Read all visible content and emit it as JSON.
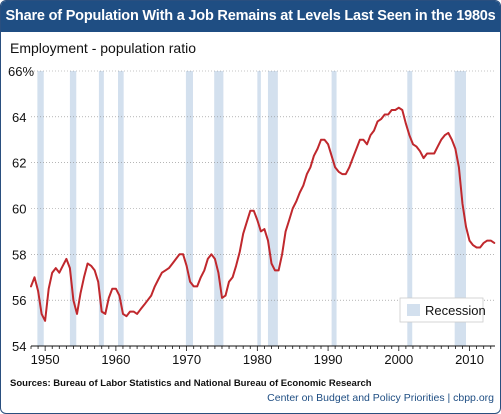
{
  "title": "Share of Population With a Job Remains at Levels Last Seen in the 1980s",
  "source": "Sources: Bureau of Labor Statistics and National Bureau of Economic Research",
  "credit": "Center on Budget and Policy Priorities | cbpp.org",
  "colors": {
    "title_bg": "#1f4e83",
    "line": "#c0282d",
    "recession": "#d3e0ee",
    "credit": "#1f4e83"
  },
  "chart_data": {
    "type": "line",
    "title": "Share of Population With a Job Remains at Levels Last Seen in the 1980s",
    "ylabel": "Employment - population ratio",
    "xlabel": "",
    "xlim": [
      1948,
      2013.6
    ],
    "ylim": [
      54,
      66
    ],
    "y_ticks": [
      54,
      56,
      58,
      60,
      62,
      64,
      66
    ],
    "y_tick_labels": [
      "54",
      "56",
      "58",
      "60",
      "62",
      "64",
      "66%"
    ],
    "x_ticks": [
      1950,
      1960,
      1970,
      1980,
      1990,
      2000,
      2010
    ],
    "x_tick_labels": [
      "1950",
      "1960",
      "1970",
      "1980",
      "1990",
      "2000",
      "2010"
    ],
    "grid": true,
    "legend": {
      "label": "Recession",
      "placement": "bottom-right"
    },
    "recessions": [
      [
        1948.9,
        1949.8
      ],
      [
        1953.5,
        1954.4
      ],
      [
        1957.6,
        1958.3
      ],
      [
        1960.3,
        1961.1
      ],
      [
        1969.9,
        1970.9
      ],
      [
        1973.9,
        1975.2
      ],
      [
        1980.0,
        1980.5
      ],
      [
        1981.5,
        1982.9
      ],
      [
        1990.5,
        1991.2
      ],
      [
        2001.2,
        2001.9
      ],
      [
        2007.9,
        2009.5
      ]
    ],
    "series": [
      {
        "name": "Employment - population ratio",
        "x": [
          1948.0,
          1948.5,
          1949.0,
          1949.5,
          1950.0,
          1950.5,
          1951.0,
          1951.5,
          1952.0,
          1952.5,
          1953.0,
          1953.5,
          1954.0,
          1954.5,
          1955.0,
          1955.5,
          1956.0,
          1956.5,
          1957.0,
          1957.5,
          1958.0,
          1958.5,
          1959.0,
          1959.5,
          1960.0,
          1960.5,
          1961.0,
          1961.5,
          1962.0,
          1962.5,
          1963.0,
          1963.5,
          1964.0,
          1964.5,
          1965.0,
          1965.5,
          1966.0,
          1966.5,
          1967.0,
          1967.5,
          1968.0,
          1968.5,
          1969.0,
          1969.5,
          1970.0,
          1970.5,
          1971.0,
          1971.5,
          1972.0,
          1972.5,
          1973.0,
          1973.5,
          1974.0,
          1974.5,
          1975.0,
          1975.5,
          1976.0,
          1976.5,
          1977.0,
          1977.5,
          1978.0,
          1978.5,
          1979.0,
          1979.5,
          1980.0,
          1980.5,
          1981.0,
          1981.5,
          1982.0,
          1982.5,
          1983.0,
          1983.5,
          1984.0,
          1984.5,
          1985.0,
          1985.5,
          1986.0,
          1986.5,
          1987.0,
          1987.5,
          1988.0,
          1988.5,
          1989.0,
          1989.5,
          1990.0,
          1990.5,
          1991.0,
          1991.5,
          1992.0,
          1992.5,
          1993.0,
          1993.5,
          1994.0,
          1994.5,
          1995.0,
          1995.5,
          1996.0,
          1996.5,
          1997.0,
          1997.5,
          1998.0,
          1998.5,
          1999.0,
          1999.5,
          2000.0,
          2000.5,
          2001.0,
          2001.5,
          2002.0,
          2002.5,
          2003.0,
          2003.5,
          2004.0,
          2004.5,
          2005.0,
          2005.5,
          2006.0,
          2006.5,
          2007.0,
          2007.5,
          2008.0,
          2008.5,
          2009.0,
          2009.5,
          2010.0,
          2010.5,
          2011.0,
          2011.5,
          2012.0,
          2012.5,
          2013.0,
          2013.5
        ],
        "values": [
          56.6,
          57.0,
          56.4,
          55.4,
          55.1,
          56.5,
          57.2,
          57.4,
          57.2,
          57.5,
          57.8,
          57.4,
          56.0,
          55.4,
          56.3,
          57.0,
          57.6,
          57.5,
          57.3,
          56.8,
          55.5,
          55.4,
          56.1,
          56.5,
          56.5,
          56.2,
          55.4,
          55.3,
          55.5,
          55.5,
          55.4,
          55.6,
          55.8,
          56.0,
          56.2,
          56.6,
          56.9,
          57.2,
          57.3,
          57.4,
          57.6,
          57.8,
          58.0,
          58.0,
          57.5,
          56.8,
          56.6,
          56.6,
          57.0,
          57.3,
          57.8,
          58.0,
          57.8,
          57.2,
          56.1,
          56.2,
          56.8,
          57.0,
          57.5,
          58.1,
          58.9,
          59.4,
          59.9,
          59.9,
          59.5,
          59.0,
          59.1,
          58.6,
          57.6,
          57.3,
          57.3,
          58.0,
          59.0,
          59.5,
          60.0,
          60.3,
          60.7,
          61.0,
          61.5,
          61.8,
          62.3,
          62.6,
          63.0,
          63.0,
          62.8,
          62.3,
          61.8,
          61.6,
          61.5,
          61.5,
          61.8,
          62.2,
          62.6,
          63.0,
          63.0,
          62.8,
          63.2,
          63.4,
          63.8,
          63.9,
          64.1,
          64.1,
          64.3,
          64.3,
          64.4,
          64.3,
          63.7,
          63.2,
          62.8,
          62.7,
          62.5,
          62.2,
          62.4,
          62.4,
          62.4,
          62.7,
          63.0,
          63.2,
          63.3,
          63.0,
          62.6,
          61.8,
          60.2,
          59.2,
          58.6,
          58.4,
          58.3,
          58.3,
          58.5,
          58.6,
          58.6,
          58.5
        ]
      }
    ]
  }
}
